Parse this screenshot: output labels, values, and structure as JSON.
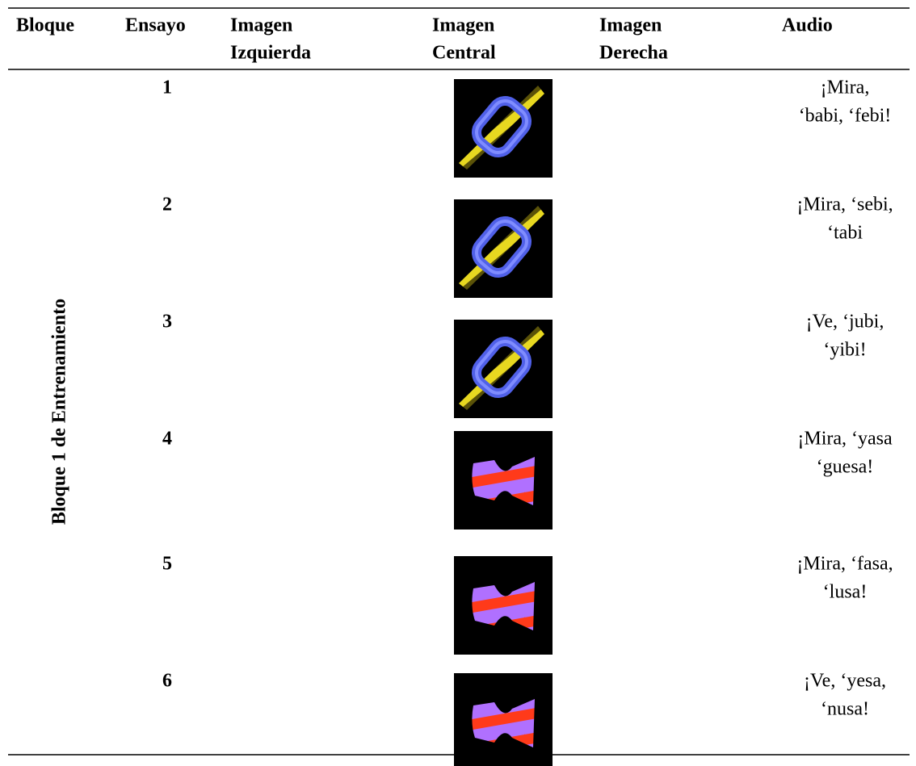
{
  "header": {
    "columns": [
      [
        "Bloque"
      ],
      [
        "Ensayo"
      ],
      [
        "Imagen",
        "Izquierda"
      ],
      [
        "Imagen",
        "Central"
      ],
      [
        "Imagen",
        "Derecha"
      ],
      [
        "Audio"
      ]
    ]
  },
  "block_label": "Bloque 1 de Entrenamiento",
  "rows": [
    {
      "trial": 1,
      "audio": [
        "¡Mira,",
        "‘babi, ‘febi!"
      ]
    },
    {
      "trial": 2,
      "audio": [
        "¡Mira, ‘sebi,",
        "‘tabi"
      ]
    },
    {
      "trial": 3,
      "audio": [
        "¡Ve, ‘jubi,",
        "‘yibi!"
      ]
    },
    {
      "trial": 4,
      "audio": [
        "¡Mira, ‘yasa",
        "‘guesa!"
      ]
    },
    {
      "trial": 5,
      "audio": [
        "¡Mira, ‘fasa,",
        "‘lusa!"
      ]
    },
    {
      "trial": 6,
      "audio": [
        "¡Ve, ‘yesa,",
        "‘nusa!"
      ]
    }
  ]
}
